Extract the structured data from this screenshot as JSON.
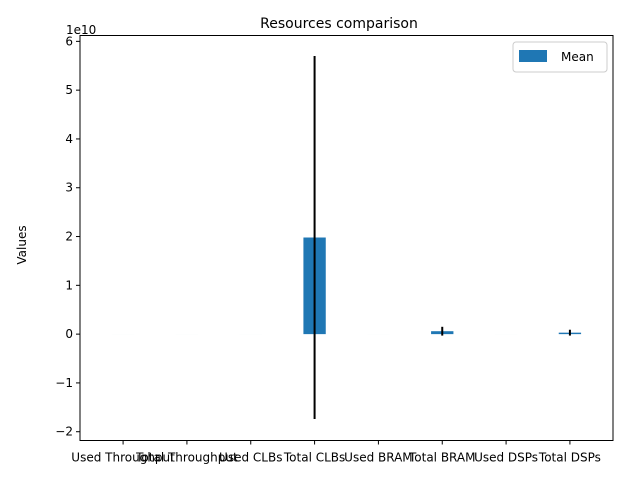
{
  "chart_data": {
    "type": "bar",
    "title": "Resources comparison",
    "xlabel": "",
    "ylabel": "Values",
    "y_offset_text": "1e10",
    "categories": [
      "Used Throughput",
      "Total Throughput",
      "Used CLBs",
      "Total CLBs",
      "Used BRAM",
      "Total BRAM",
      "Used DSPs",
      "Total DSPs"
    ],
    "series": [
      {
        "name": "Mean",
        "color": "#1f77b4",
        "values": [
          0,
          0,
          0,
          19800000000,
          0,
          600000000,
          0,
          300000000
        ],
        "error": [
          0,
          0,
          0,
          37200000000,
          0,
          900000000,
          0,
          600000000
        ]
      }
    ],
    "yticks": [
      -20000000000,
      -10000000000,
      0,
      10000000000,
      20000000000,
      30000000000,
      40000000000,
      50000000000,
      60000000000
    ],
    "ytick_labels": [
      "−2",
      "−1",
      "0",
      "1",
      "2",
      "3",
      "4",
      "5",
      "6"
    ],
    "ylim": [
      -21800000000,
      61200000000
    ],
    "grid": false,
    "legend_position": "top-right"
  }
}
